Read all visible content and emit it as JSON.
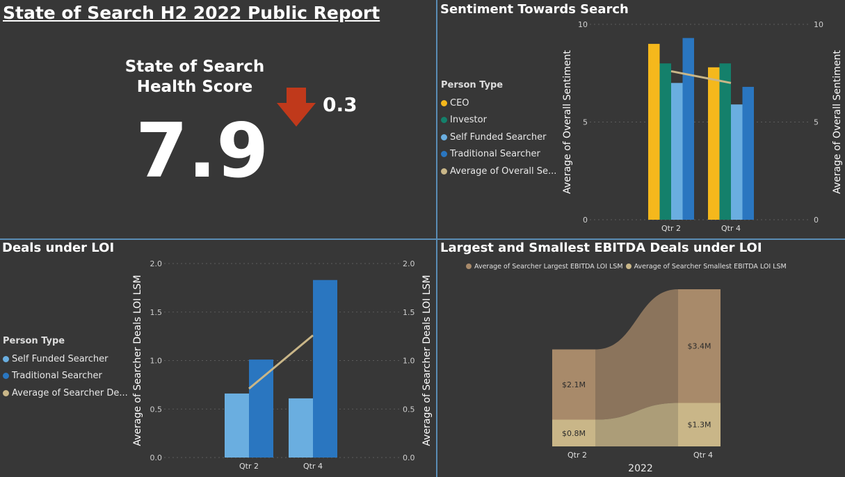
{
  "report": {
    "title": "State of Search H2 2022 Public Report"
  },
  "health": {
    "title_line1": "State of Search",
    "title_line2": "Health Score",
    "value": "7.9",
    "delta": "0.3",
    "delta_direction": "down",
    "arrow_color": "#c0391b"
  },
  "colors": {
    "ceo": "#f5b81c",
    "investor": "#14806b",
    "self_funded": "#6aaee0",
    "traditional": "#2a76c0",
    "average": "#c9b688",
    "ebitda_largest": "#a88a6a",
    "ebitda_smallest": "#c9b688"
  },
  "chart_data": [
    {
      "id": "sentiment",
      "type": "bar",
      "title": "Sentiment Towards Search",
      "categories": [
        "Qtr 2",
        "Qtr 4"
      ],
      "ylabel": "Average of Overall Sentiment",
      "y2label": "Average of Overall Sentiment",
      "ylim": [
        0,
        10
      ],
      "yticks": [
        0,
        5,
        10
      ],
      "legend_title": "Person Type",
      "series": [
        {
          "name": "CEO",
          "color": "#f5b81c",
          "values": [
            9.0,
            7.8
          ]
        },
        {
          "name": "Investor",
          "color": "#14806b",
          "values": [
            8.0,
            8.0
          ]
        },
        {
          "name": "Self Funded Searcher",
          "color": "#6aaee0",
          "values": [
            7.0,
            5.9
          ]
        },
        {
          "name": "Traditional Searcher",
          "color": "#2a76c0",
          "values": [
            9.3,
            6.8
          ]
        }
      ],
      "line": {
        "name": "Average of Overall Se...",
        "color": "#c9b688",
        "values": [
          7.6,
          7.0
        ]
      }
    },
    {
      "id": "deals",
      "type": "bar",
      "title": "Deals under LOI",
      "categories": [
        "Qtr 2",
        "Qtr 4"
      ],
      "ylabel": "Average of Searcher Deals LOI LSM",
      "y2label": "Average of Searcher Deals LOI LSM",
      "ylim": [
        0,
        2.0
      ],
      "yticks": [
        "0.0",
        "0.5",
        "1.0",
        "1.5",
        "2.0"
      ],
      "legend_title": "Person Type",
      "series": [
        {
          "name": "Self Funded Searcher",
          "color": "#6aaee0",
          "values": [
            0.66,
            0.61
          ]
        },
        {
          "name": "Traditional Searcher",
          "color": "#2a76c0",
          "values": [
            1.01,
            1.83
          ]
        }
      ],
      "line": {
        "name": "Average of Searcher De...",
        "color": "#c9b688",
        "values": [
          0.71,
          1.26
        ]
      }
    },
    {
      "id": "ebitda",
      "type": "area",
      "title": "Largest and Smallest EBITDA Deals under LOI",
      "categories": [
        "Qtr 2",
        "Qtr 4"
      ],
      "xlabel": "2022",
      "series": [
        {
          "name": "Average of Searcher Largest EBITDA LOI LSM",
          "color": "#a88a6a",
          "values": [
            2.1,
            3.4
          ],
          "labels": [
            "$2.1M",
            "$3.4M"
          ]
        },
        {
          "name": "Average of Searcher Smallest EBITDA LOI LSM",
          "color": "#c9b688",
          "values": [
            0.8,
            1.3
          ],
          "labels": [
            "$0.8M",
            "$1.3M"
          ]
        }
      ]
    }
  ]
}
